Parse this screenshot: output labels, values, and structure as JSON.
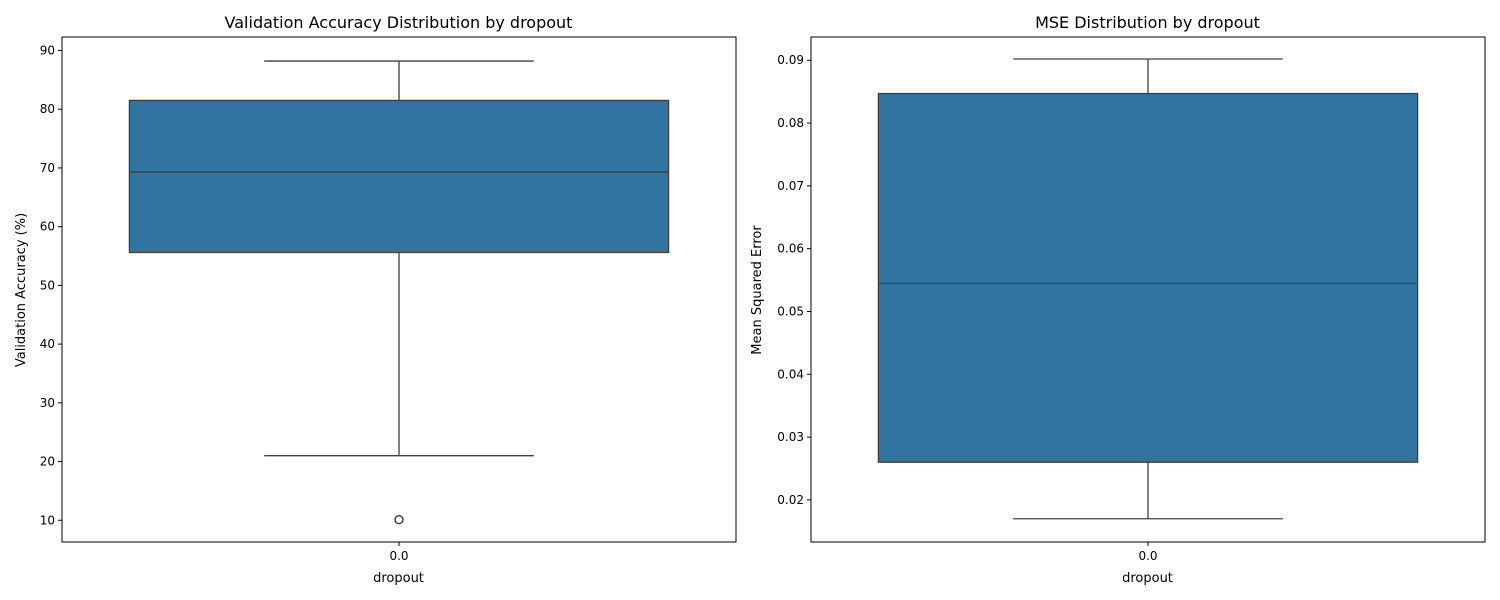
{
  "colors": {
    "box_fill": "#3274a1",
    "edge": "#3f3f3f",
    "axis": "#000000",
    "background": "#ffffff"
  },
  "chart_data": [
    {
      "type": "box",
      "title": "Validation Accuracy Distribution by dropout",
      "xlabel": "dropout",
      "ylabel": "Validation Accuracy (%)",
      "categories": [
        "0.0"
      ],
      "ylim": [
        6.3,
        92.3
      ],
      "yticks": [
        10,
        20,
        30,
        40,
        50,
        60,
        70,
        80,
        90
      ],
      "ytick_labels": [
        "10",
        "20",
        "30",
        "40",
        "50",
        "60",
        "70",
        "80",
        "90"
      ],
      "boxes": [
        {
          "category": "0.0",
          "whisker_low": 21.0,
          "q1": 55.6,
          "median": 69.3,
          "q3": 81.5,
          "whisker_high": 88.2,
          "outliers": [
            10.1
          ]
        }
      ],
      "grid": false
    },
    {
      "type": "box",
      "title": "MSE Distribution by dropout",
      "xlabel": "dropout",
      "ylabel": "Mean Squared Error",
      "categories": [
        "0.0"
      ],
      "ylim": [
        0.0133,
        0.0937
      ],
      "yticks": [
        0.02,
        0.03,
        0.04,
        0.05,
        0.06,
        0.07,
        0.08,
        0.09
      ],
      "ytick_labels": [
        "0.02",
        "0.03",
        "0.04",
        "0.05",
        "0.06",
        "0.07",
        "0.08",
        "0.09"
      ],
      "boxes": [
        {
          "category": "0.0",
          "whisker_low": 0.017,
          "q1": 0.026,
          "median": 0.0545,
          "q3": 0.0847,
          "whisker_high": 0.0902,
          "outliers": []
        }
      ],
      "grid": false
    }
  ]
}
